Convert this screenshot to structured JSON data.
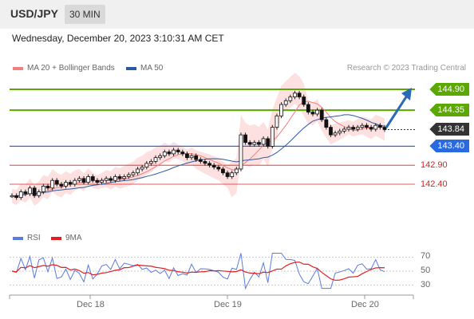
{
  "header": {
    "symbol": "USD/JPY",
    "timeframe": "30 MIN"
  },
  "datetime": "Wednesday, December 20, 2023 3:10:31 AM CET",
  "legend": {
    "ma20_label": "MA 20 + Bollinger Bands",
    "ma50_label": "MA 50",
    "ma20_color": "#f08080",
    "ma50_color": "#2a5aa0",
    "credit": "Research © 2023 Trading Central"
  },
  "levels": {
    "r2": "144.90",
    "r1": "144.35",
    "last": "143.84",
    "pivot": "143.40",
    "s1": "142.90",
    "s2": "142.40",
    "resistance_color": "#5aa800",
    "pivot_color": "#2a6ae0",
    "support_color": "#e02020",
    "last_color": "#333333"
  },
  "rsi_legend": {
    "rsi_label": "RSI",
    "ma_label": "9MA",
    "rsi_color": "#5a7be0",
    "ma_color": "#e02020"
  },
  "rsi_levels": [
    "70",
    "50",
    "30"
  ],
  "x_axis": [
    "Dec 18",
    "Dec 19",
    "Dec 20"
  ],
  "chart_data": {
    "type": "candlestick",
    "y_range": [
      142.0,
      145.2
    ],
    "resistance_levels": [
      144.9,
      144.35
    ],
    "pivot": 143.4,
    "support_levels": [
      142.9,
      142.4
    ],
    "last_price": 143.84,
    "close_path": [
      142.1,
      142.05,
      142.2,
      142.15,
      142.3,
      142.1,
      142.2,
      142.35,
      142.3,
      142.5,
      142.4,
      142.35,
      142.45,
      142.4,
      142.5,
      142.55,
      142.45,
      142.6,
      142.5,
      142.45,
      142.5,
      142.55,
      142.5,
      142.6,
      142.55,
      142.6,
      142.65,
      142.7,
      142.8,
      142.85,
      142.95,
      143.0,
      143.1,
      143.15,
      143.25,
      143.2,
      143.3,
      143.25,
      143.2,
      143.1,
      143.15,
      143.05,
      143.0,
      142.95,
      142.9,
      142.85,
      142.8,
      142.7,
      142.6,
      142.7,
      142.8,
      143.7,
      143.5,
      143.45,
      143.5,
      143.45,
      143.6,
      143.4,
      143.9,
      144.2,
      144.5,
      144.6,
      144.7,
      144.8,
      144.7,
      144.5,
      144.3,
      144.25,
      144.35,
      144.1,
      143.9,
      143.7,
      143.75,
      143.8,
      143.85,
      143.9,
      143.85,
      143.9,
      143.95,
      143.9,
      143.85,
      143.95,
      143.9,
      143.84
    ],
    "rsi_range": [
      20,
      80
    ]
  }
}
